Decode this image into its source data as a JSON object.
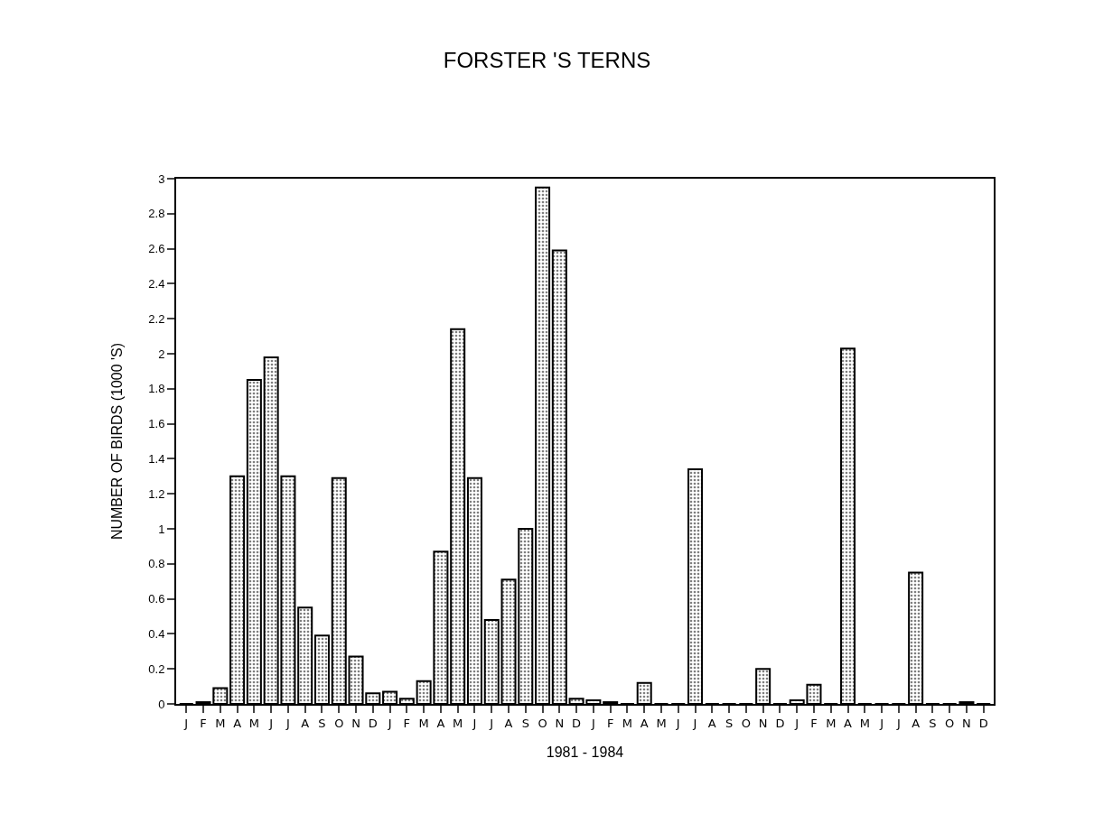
{
  "chart_data": {
    "type": "bar",
    "title": "FORSTER 'S TERNS",
    "xlabel": "1981 - 1984",
    "ylabel": "NUMBER OF BIRDS (1000 'S)",
    "categories": [
      "J",
      "F",
      "M",
      "A",
      "M",
      "J",
      "J",
      "A",
      "S",
      "O",
      "N",
      "D",
      "J",
      "F",
      "M",
      "A",
      "M",
      "J",
      "J",
      "A",
      "S",
      "O",
      "N",
      "D",
      "J",
      "F",
      "M",
      "A",
      "M",
      "J",
      "J",
      "A",
      "S",
      "O",
      "N",
      "D",
      "J",
      "F",
      "M",
      "A",
      "M",
      "J",
      "J",
      "A",
      "S",
      "O",
      "N",
      "D"
    ],
    "values": [
      0,
      0.01,
      0.09,
      1.3,
      1.85,
      1.98,
      1.3,
      0.55,
      0.39,
      1.29,
      0.27,
      0.06,
      0.07,
      0.03,
      0.13,
      0.87,
      2.14,
      1.29,
      0.48,
      0.71,
      1.0,
      2.95,
      2.59,
      0.03,
      0.02,
      0.01,
      0,
      0.12,
      0,
      0,
      1.34,
      0,
      0,
      0,
      0.2,
      0,
      0.02,
      0.11,
      0,
      2.03,
      0,
      0,
      0,
      0.75,
      0,
      0,
      0.01,
      0
    ],
    "color": "#000000",
    "ylim": [
      0,
      3
    ],
    "yticks": [
      0,
      0.2,
      0.4,
      0.6,
      0.8,
      1,
      1.2,
      1.4,
      1.6,
      1.8,
      2,
      2.2,
      2.4,
      2.6,
      2.8,
      3
    ]
  }
}
